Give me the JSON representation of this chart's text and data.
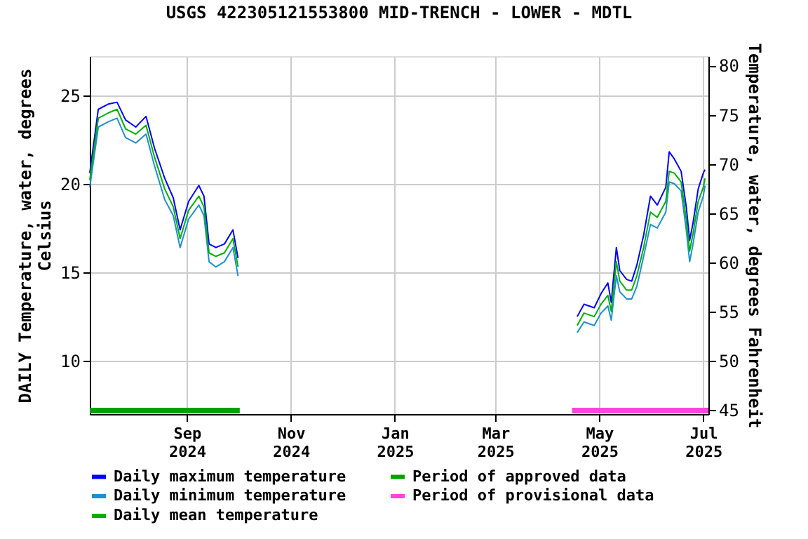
{
  "chart_data": {
    "type": "line",
    "title": "USGS 422305121553800 MID-TRENCH - LOWER   -  MDTL",
    "xlabel": null,
    "ylabel": "DAILY Temperature, water, degrees Celsius",
    "y2label": "Temperature, water, degrees Fahrenheit",
    "xlim": [
      "2024-07-06",
      "2025-07-04"
    ],
    "xticks": [
      {
        "value": "2024-09-01",
        "label": "Sep 2024"
      },
      {
        "value": "2024-11-01",
        "label": "Nov 2024"
      },
      {
        "value": "2025-01-01",
        "label": "Jan 2025"
      },
      {
        "value": "2025-03-01",
        "label": "Mar 2025"
      },
      {
        "value": "2025-05-01",
        "label": "May 2025"
      },
      {
        "value": "2025-07-01",
        "label": "Jul 2025"
      }
    ],
    "ylim": [
      7.0,
      27.2
    ],
    "yticks": [
      10,
      15,
      20,
      25
    ],
    "y2lim": [
      44.6,
      80.96
    ],
    "y2ticks": [
      45,
      50,
      55,
      60,
      65,
      70,
      75,
      80
    ],
    "grid": true,
    "legend": "bottom",
    "marker": "none",
    "line_style": "solid",
    "x": [
      "2024-07-06",
      "2024-07-11",
      "2024-07-17",
      "2024-07-22",
      "2024-07-27",
      "2024-08-02",
      "2024-08-08",
      "2024-08-13",
      "2024-08-19",
      "2024-08-24",
      "2024-08-28",
      "2024-09-02",
      "2024-09-08",
      "2024-09-11",
      "2024-09-14",
      "2024-09-18",
      "2024-09-23",
      "2024-09-28",
      "2024-10-01",
      "2025-01-01",
      "2025-04-18",
      "2025-04-22",
      "2025-04-28",
      "2025-05-02",
      "2025-05-06",
      "2025-05-08",
      "2025-05-11",
      "2025-05-13",
      "2025-05-17",
      "2025-05-20",
      "2025-05-23",
      "2025-05-27",
      "2025-05-31",
      "2025-06-04",
      "2025-06-09",
      "2025-06-11",
      "2025-06-14",
      "2025-06-18",
      "2025-06-21",
      "2025-06-23",
      "2025-06-25",
      "2025-06-28",
      "2025-07-01",
      "2025-07-02"
    ],
    "series": [
      {
        "name": "Daily maximum temperature",
        "color": "#0000ff",
        "values": [
          20.6,
          24.2,
          24.5,
          24.6,
          23.6,
          23.2,
          23.8,
          22.0,
          20.3,
          19.2,
          17.4,
          19.0,
          19.9,
          19.3,
          16.6,
          16.4,
          16.6,
          17.4,
          15.8,
          null,
          12.5,
          13.2,
          13.0,
          13.8,
          14.4,
          13.3,
          16.4,
          15.1,
          14.6,
          14.5,
          15.4,
          17.1,
          19.3,
          18.8,
          19.8,
          21.8,
          21.4,
          20.7,
          18.7,
          16.8,
          17.8,
          19.7,
          20.6,
          20.8
        ]
      },
      {
        "name": "Daily minimum temperature",
        "color": "#1e90d0",
        "values": [
          19.8,
          23.2,
          23.5,
          23.7,
          22.6,
          22.3,
          22.8,
          21.0,
          19.1,
          18.2,
          16.4,
          18.0,
          18.8,
          18.2,
          15.6,
          15.3,
          15.6,
          16.4,
          14.8,
          null,
          11.6,
          12.2,
          12.0,
          12.7,
          13.1,
          12.3,
          14.8,
          13.9,
          13.5,
          13.5,
          14.2,
          15.9,
          17.7,
          17.5,
          18.4,
          20.1,
          20.0,
          19.6,
          17.4,
          15.6,
          16.6,
          18.4,
          19.3,
          19.9
        ]
      },
      {
        "name": "Daily mean temperature",
        "color": "#00b000",
        "values": [
          20.2,
          23.7,
          24.0,
          24.2,
          23.1,
          22.8,
          23.3,
          21.5,
          19.7,
          18.7,
          16.9,
          18.5,
          19.3,
          18.7,
          16.1,
          15.9,
          16.1,
          16.9,
          15.3,
          null,
          12.0,
          12.7,
          12.5,
          13.2,
          13.7,
          12.8,
          15.6,
          14.5,
          14.0,
          14.0,
          14.8,
          16.4,
          18.4,
          18.1,
          19.0,
          20.7,
          20.6,
          20.1,
          18.0,
          16.2,
          17.2,
          19.0,
          19.8,
          20.3
        ]
      },
      {
        "name": "Period of approved data",
        "color": "#00a000",
        "x": [
          "2024-07-06",
          "2024-10-02"
        ],
        "values": [
          7.2,
          7.2
        ]
      },
      {
        "name": "Period of provisional data",
        "color": "#ff44dd",
        "x": [
          "2025-04-15",
          "2025-07-04"
        ],
        "values": [
          7.2,
          7.2
        ]
      }
    ]
  }
}
